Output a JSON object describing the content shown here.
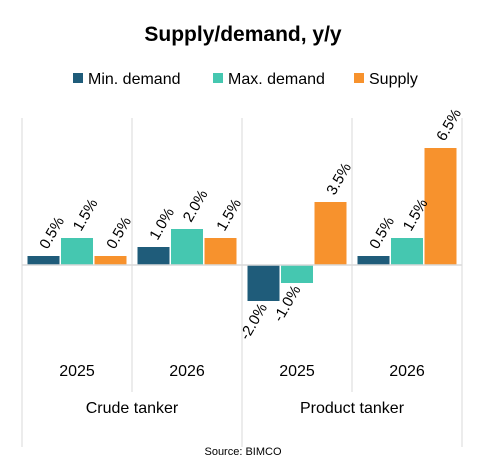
{
  "chart_data": {
    "type": "bar",
    "title": "Supply/demand, y/y",
    "source": "Source: BIMCO",
    "categories": [
      "2025",
      "2026",
      "2025",
      "2026"
    ],
    "category_labels": [
      "2025",
      "2026",
      "2025",
      "2026"
    ],
    "groups": [
      {
        "label": "Crude tanker",
        "categories": [
          0,
          1
        ]
      },
      {
        "label": "Product tanker",
        "categories": [
          2,
          3
        ]
      }
    ],
    "series": [
      {
        "name": "Min. demand",
        "color": "#1f5c7a",
        "values": [
          0.5,
          1.0,
          -2.0,
          0.5
        ],
        "labels": [
          "0.5%",
          "1.0%",
          "-2.0%",
          "0.5%"
        ]
      },
      {
        "name": "Max. demand",
        "color": "#45c7b0",
        "values": [
          1.5,
          2.0,
          -1.0,
          1.5
        ],
        "labels": [
          "1.5%",
          "2.0%",
          "-1.0%",
          "1.5%"
        ]
      },
      {
        "name": "Supply",
        "color": "#f7922d",
        "values": [
          0.5,
          1.5,
          3.5,
          6.5
        ],
        "labels": [
          "0.5%",
          "1.5%",
          "3.5%",
          "6.5%"
        ]
      }
    ],
    "ylim": [
      -2.0,
      6.5
    ],
    "legend_position": "top",
    "grid": false
  }
}
